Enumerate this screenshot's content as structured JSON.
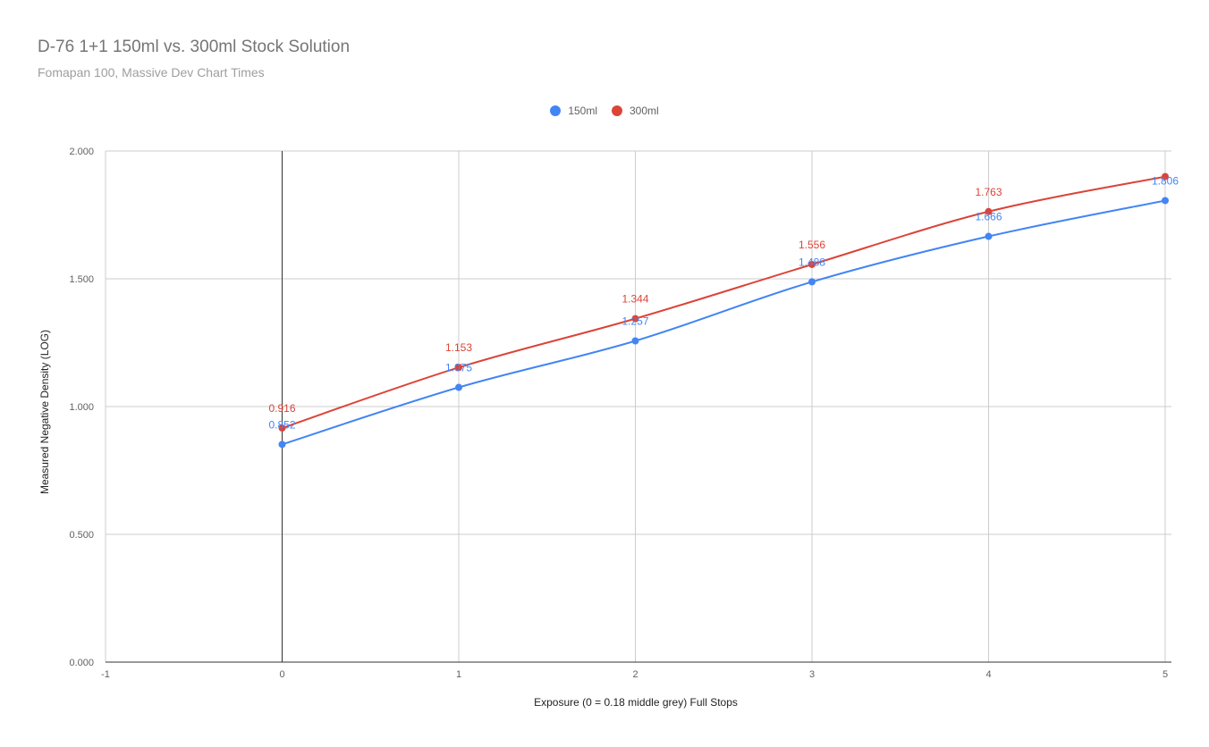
{
  "chart_data": {
    "type": "line",
    "title": "D-76 1+1 150ml vs. 300ml Stock Solution",
    "subtitle": "Fomapan 100, Massive Dev Chart Times",
    "xlabel": "Exposure (0 = 0.18 middle grey) Full Stops",
    "ylabel": "Measured Negative Density (LOG)",
    "xlim": [
      -1,
      5
    ],
    "ylim": [
      0,
      2
    ],
    "x_ticks": [
      "-1",
      "0",
      "1",
      "2",
      "3",
      "4",
      "5"
    ],
    "y_ticks": [
      "0.000",
      "0.500",
      "1.000",
      "1.500",
      "2.000"
    ],
    "grid": true,
    "legend_position": "top",
    "x": [
      0,
      1,
      2,
      3,
      4,
      5
    ],
    "series": [
      {
        "name": "150ml",
        "color": "#4285f4",
        "values": [
          0.852,
          1.075,
          1.257,
          1.488,
          1.666,
          1.806
        ],
        "labels": [
          "0.852",
          "1.075",
          "1.257",
          "1.488",
          "1.666",
          "1.806"
        ]
      },
      {
        "name": "300ml",
        "color": "#db4437",
        "values": [
          0.916,
          1.153,
          1.344,
          1.556,
          1.763,
          1.9
        ],
        "labels": [
          "0.916",
          "1.153",
          "1.344",
          "1.556",
          "1.763",
          ""
        ]
      }
    ]
  }
}
